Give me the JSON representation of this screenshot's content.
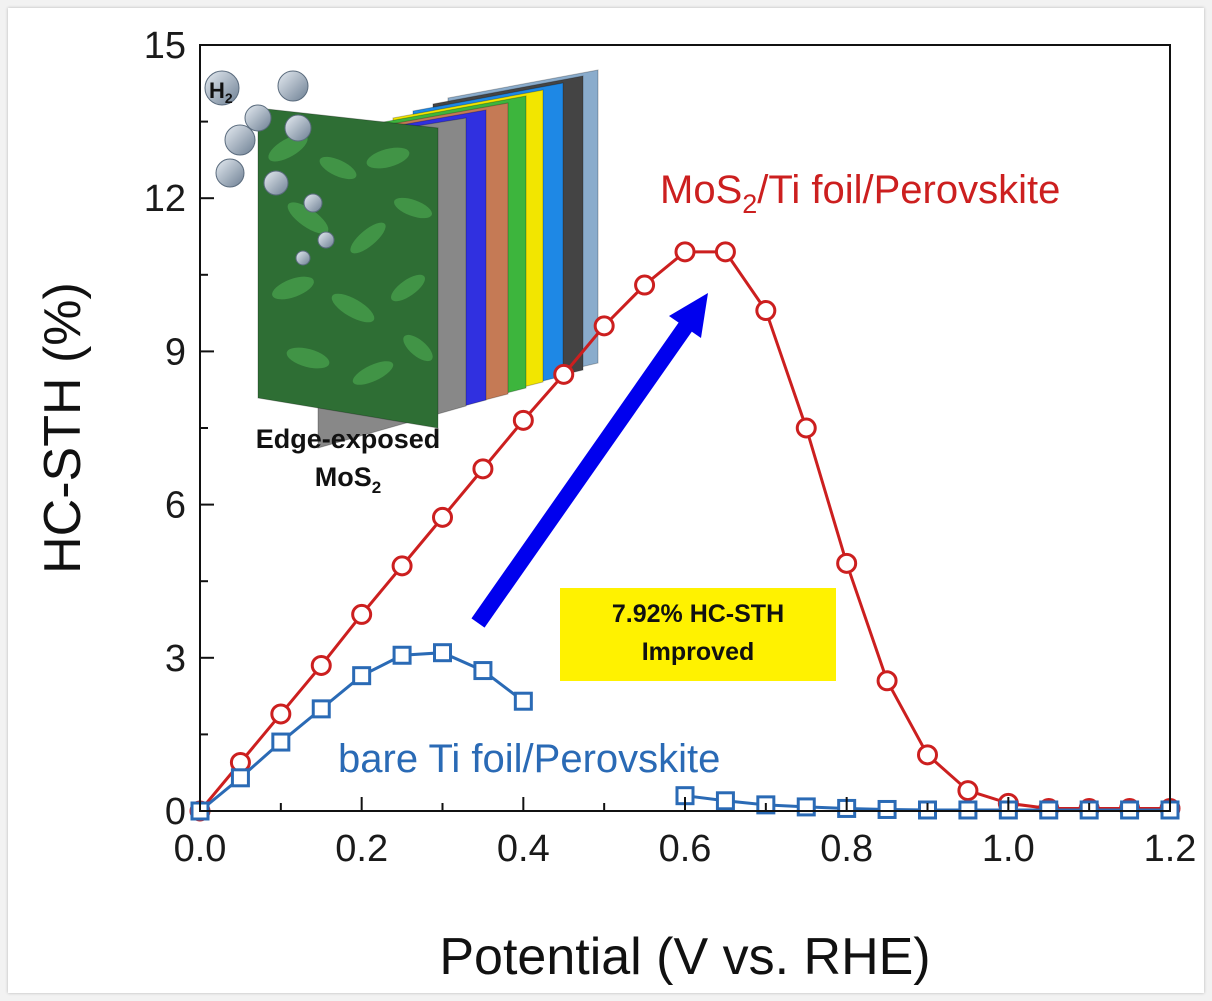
{
  "chart_data": {
    "type": "line",
    "xlabel": "Potential (V vs. RHE)",
    "ylabel": "HC-STH (%)",
    "xlim": [
      0.0,
      1.2
    ],
    "ylim": [
      0,
      15
    ],
    "xticks": [
      "0.0",
      "0.2",
      "0.4",
      "0.6",
      "0.8",
      "1.0",
      "1.2"
    ],
    "yticks": [
      "0",
      "3",
      "6",
      "9",
      "12",
      "15"
    ],
    "grid": false,
    "series": [
      {
        "name": "MoS2/Ti foil/Perovskite",
        "color": "#cc1f1f",
        "marker": "circle",
        "x": [
          0.0,
          0.05,
          0.1,
          0.15,
          0.2,
          0.25,
          0.3,
          0.35,
          0.4,
          0.45,
          0.5,
          0.55,
          0.6,
          0.65,
          0.7,
          0.75,
          0.8,
          0.85,
          0.9,
          0.95,
          1.0,
          1.05,
          1.1,
          1.15,
          1.2
        ],
        "y": [
          0.0,
          0.95,
          1.9,
          2.85,
          3.85,
          4.8,
          5.75,
          6.7,
          7.65,
          8.55,
          9.5,
          10.3,
          10.95,
          10.95,
          9.8,
          7.5,
          4.85,
          2.55,
          1.1,
          0.4,
          0.15,
          0.05,
          0.05,
          0.05,
          0.05
        ]
      },
      {
        "name": "bare Ti foil/Perovskite",
        "color": "#2a6ab5",
        "marker": "square",
        "x": [
          0.0,
          0.05,
          0.1,
          0.15,
          0.2,
          0.25,
          0.3,
          0.35,
          0.4,
          0.6,
          0.65,
          0.7,
          0.75,
          0.8,
          0.85,
          0.9,
          0.95,
          1.0,
          1.05,
          1.1,
          1.15,
          1.2
        ],
        "y": [
          0.0,
          0.65,
          1.35,
          2.0,
          2.65,
          3.05,
          3.1,
          2.75,
          2.15,
          0.3,
          0.2,
          0.12,
          0.08,
          0.05,
          0.03,
          0.02,
          0.02,
          0.02,
          0.02,
          0.02,
          0.02,
          0.02
        ]
      }
    ],
    "series_labels": {
      "red_prefix": "MoS",
      "red_sub": "2",
      "red_suffix": "/Ti foil/Perovskite",
      "blue": "bare Ti foil/Perovskite"
    },
    "annotation": {
      "line1": "7.92% HC-STH",
      "line2": "Improved",
      "box_color": "#fff200",
      "arrow_color": "#0000ee"
    },
    "inset": {
      "h2_main": "H",
      "h2_sub": "2",
      "label_line1": "Edge-exposed",
      "label_line2_main": "MoS",
      "label_line2_sub": "2",
      "layer_colors": [
        "#8aaccc",
        "#444444",
        "#1e88e5",
        "#f2e600",
        "#3db53d",
        "#c57a55",
        "#3030e0",
        "#888888",
        "#2e6e34"
      ]
    }
  }
}
